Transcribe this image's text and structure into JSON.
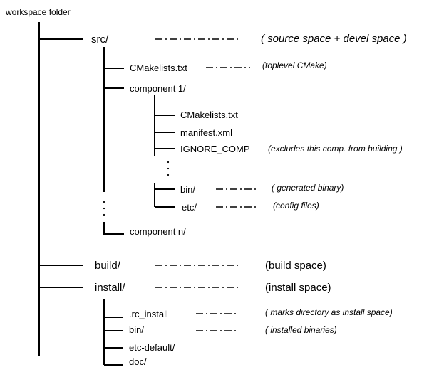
{
  "title": "workspace folder",
  "entries": {
    "src": "src/",
    "src_note": "( source space + devel space )",
    "cmakelists_top": "CMakelists.txt",
    "cmakelists_top_note": "(toplevel CMake)",
    "component1": "component 1/",
    "comp_cmakelists": "CMakelists.txt",
    "comp_manifest": "manifest.xml",
    "comp_ignore": "IGNORE_COMP",
    "comp_ignore_note": "(excludes this comp. from building )",
    "comp_bin": "bin/",
    "comp_bin_note": "( generated binary)",
    "comp_etc": "etc/",
    "comp_etc_note": "(config files)",
    "component_n": "component n/",
    "build": "build/",
    "build_note": "(build space)",
    "install": "install/",
    "install_note": "(install space)",
    "rc_install": ".rc_install",
    "rc_install_note": "( marks directory as install space)",
    "inst_bin": "bin/",
    "inst_bin_note": "( installed binaries)",
    "etc_default": "etc-default/",
    "doc": "doc/"
  }
}
